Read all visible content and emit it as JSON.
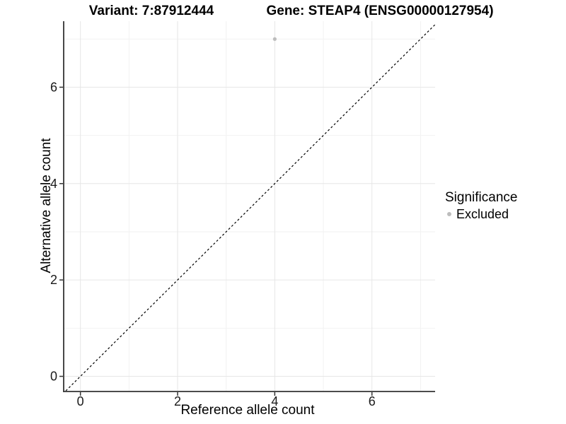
{
  "chart_data": {
    "type": "scatter",
    "title_left": "Variant: 7:87912444",
    "title_right": "Gene: STEAP4 (ENSG00000127954)",
    "xlabel": "Reference allele count",
    "ylabel": "Alternative allele count",
    "xlim": [
      -0.33,
      7.3
    ],
    "ylim": [
      -0.3,
      7.37
    ],
    "x_major_ticks": [
      0,
      2,
      4,
      6
    ],
    "x_minor_ticks": [
      1,
      3,
      5,
      7
    ],
    "y_major_ticks": [
      0,
      2,
      4,
      6
    ],
    "y_minor_ticks": [
      1,
      3,
      5,
      7
    ],
    "identity_line": {
      "slope": 1,
      "intercept": 0,
      "style": "dashed",
      "color": "#000000"
    },
    "series": [
      {
        "name": "Excluded",
        "color": "#bdbdbd",
        "points": [
          {
            "x": 4,
            "y": 7
          }
        ]
      }
    ],
    "legend": {
      "title": "Significance",
      "position": "right",
      "items": [
        {
          "label": "Excluded",
          "color": "#bdbdbd"
        }
      ]
    },
    "grid": true,
    "style": {
      "grid_major_color": "#e6e6e6",
      "grid_minor_color": "#f2f2f2",
      "axis_line_color": "#333333",
      "tick_label_color": "#1a1a1a",
      "point_color": "#bdbdbd",
      "background": "#ffffff"
    }
  }
}
